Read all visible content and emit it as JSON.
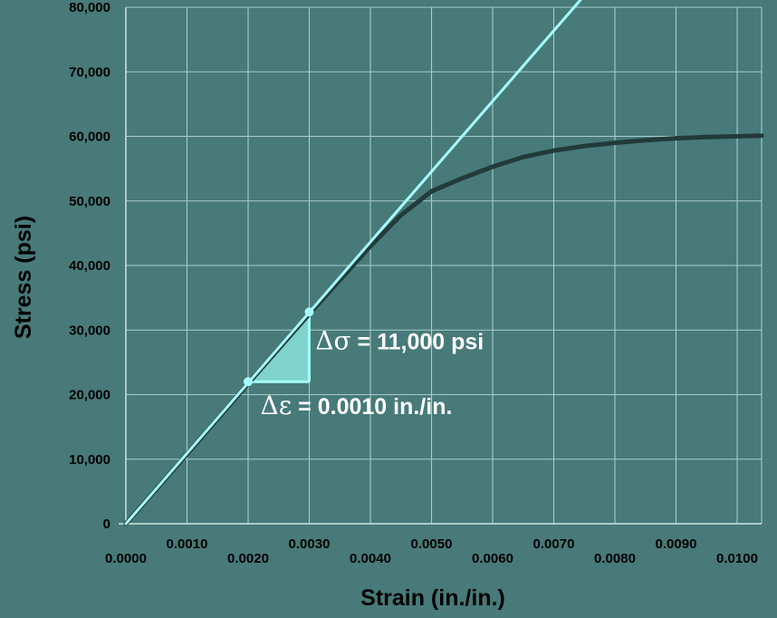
{
  "chart_data": {
    "type": "line",
    "xlabel": "Strain (in./in.)",
    "ylabel": "Stress (psi)",
    "xlim": [
      0,
      0.0104
    ],
    "ylim": [
      0,
      80000
    ],
    "x_ticks": [
      0,
      0.001,
      0.002,
      0.003,
      0.004,
      0.005,
      0.006,
      0.007,
      0.008,
      0.009,
      0.01
    ],
    "x_tick_labels": [
      "0.0000",
      "0.0010",
      "0.0020",
      "0.0030",
      "0.0040",
      "0.0050",
      "0.0060",
      "0.0070",
      "0.0080",
      "0.0090",
      "0.0100"
    ],
    "y_ticks": [
      0,
      10000,
      20000,
      30000,
      40000,
      50000,
      60000,
      70000,
      80000
    ],
    "y_tick_labels": [
      "0",
      "10,000",
      "20,000",
      "30,000",
      "40,000",
      "50,000",
      "60,000",
      "70,000",
      "80,000"
    ],
    "grid": true,
    "series": [
      {
        "role": "stress-strain-curve",
        "color": "#233a3a",
        "x": [
          0,
          0.001,
          0.002,
          0.003,
          0.004,
          0.0045,
          0.0048,
          0.005,
          0.0055,
          0.006,
          0.0065,
          0.007,
          0.0075,
          0.008,
          0.0085,
          0.009,
          0.0095,
          0.0104
        ],
        "y": [
          0,
          10800,
          21700,
          32500,
          43000,
          47800,
          50000,
          51500,
          53500,
          55300,
          56800,
          57800,
          58500,
          59000,
          59400,
          59700,
          59900,
          60100
        ]
      },
      {
        "role": "elastic-slope-line",
        "color": "#a6ffff",
        "x": [
          0,
          0.0077
        ],
        "y": [
          0,
          84000
        ]
      }
    ],
    "slope_triangle": {
      "p1": [
        0.002,
        22000
      ],
      "p2": [
        0.003,
        32800
      ],
      "fill": "#7fd3cc",
      "edge_color": "#a6ffff"
    },
    "annotations": {
      "delta_sigma": {
        "symbol": "Δσ",
        "text": " = 11,000 psi",
        "at": [
          0.0031,
          27000
        ]
      },
      "delta_epsilon": {
        "symbol": "Δε",
        "text": " = 0.0010 in./in.",
        "at": [
          0.0022,
          17000
        ]
      }
    },
    "colors": {
      "background": "#477a79",
      "grid": "#a9cccb",
      "axes": "#cfe4e3"
    }
  }
}
